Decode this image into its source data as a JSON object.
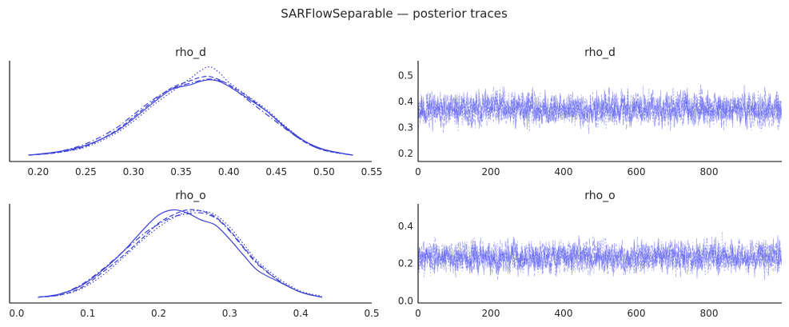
{
  "title": "SARFlowSeparable — posterior traces",
  "colors": {
    "line": "#3a3fd8",
    "trace": "#5b5cf0",
    "axis": "#000000",
    "text": "#262626"
  },
  "chart_data": [
    {
      "type": "line",
      "kind": "density",
      "title": "rho_d",
      "xlim": [
        0.17,
        0.55
      ],
      "xticks": [
        "0.20",
        "0.25",
        "0.30",
        "0.35",
        "0.40",
        "0.45",
        "0.50",
        "0.55"
      ],
      "yticks_visible": false,
      "chains": [
        {
          "style": "solid",
          "x": [
            0.19,
            0.22,
            0.25,
            0.28,
            0.3,
            0.32,
            0.34,
            0.36,
            0.37,
            0.38,
            0.39,
            0.4,
            0.42,
            0.44,
            0.46,
            0.48,
            0.5,
            0.53
          ],
          "y": [
            0.2,
            0.6,
            1.4,
            3.0,
            4.7,
            6.6,
            8.3,
            8.9,
            9.3,
            9.5,
            9.3,
            8.7,
            7.2,
            5.6,
            3.6,
            1.9,
            0.9,
            0.2
          ]
        },
        {
          "style": "dashed",
          "x": [
            0.19,
            0.22,
            0.25,
            0.28,
            0.3,
            0.32,
            0.34,
            0.36,
            0.37,
            0.38,
            0.39,
            0.4,
            0.42,
            0.44,
            0.46,
            0.48,
            0.5,
            0.53
          ],
          "y": [
            0.2,
            0.5,
            1.3,
            3.1,
            4.9,
            6.8,
            8.5,
            9.4,
            9.8,
            9.9,
            9.5,
            8.9,
            7.4,
            5.6,
            3.5,
            1.8,
            0.8,
            0.2
          ]
        },
        {
          "style": "dashdot",
          "x": [
            0.19,
            0.22,
            0.25,
            0.28,
            0.3,
            0.32,
            0.34,
            0.36,
            0.37,
            0.38,
            0.39,
            0.4,
            0.42,
            0.44,
            0.46,
            0.48,
            0.5,
            0.53
          ],
          "y": [
            0.2,
            0.6,
            1.6,
            3.4,
            5.2,
            7.0,
            8.4,
            9.1,
            9.4,
            9.6,
            9.4,
            8.9,
            7.0,
            5.2,
            3.4,
            1.8,
            0.8,
            0.2
          ]
        },
        {
          "style": "dotted",
          "x": [
            0.19,
            0.22,
            0.25,
            0.28,
            0.3,
            0.32,
            0.34,
            0.36,
            0.37,
            0.38,
            0.39,
            0.4,
            0.42,
            0.44,
            0.46,
            0.48,
            0.5,
            0.53
          ],
          "y": [
            0.2,
            0.5,
            1.2,
            2.8,
            4.4,
            6.3,
            8.0,
            9.7,
            10.6,
            11.1,
            10.4,
            9.2,
            7.5,
            5.8,
            3.7,
            1.9,
            0.8,
            0.2
          ]
        }
      ]
    },
    {
      "type": "line",
      "kind": "trace",
      "title": "rho_d",
      "xlim": [
        0,
        1000
      ],
      "ylim": [
        0.17,
        0.55
      ],
      "xticks": [
        0,
        200,
        400,
        600,
        800
      ],
      "yticks": [
        0.2,
        0.3,
        0.4,
        0.5
      ],
      "ytick_labels": [
        "0.2",
        "0.3",
        "0.4",
        "0.5"
      ],
      "chains": [
        {
          "style": "solid",
          "center": 0.37,
          "spread": 0.045,
          "seed": 11
        },
        {
          "style": "dashed",
          "center": 0.37,
          "spread": 0.045,
          "seed": 23
        },
        {
          "style": "dashdot",
          "center": 0.37,
          "spread": 0.045,
          "seed": 37
        },
        {
          "style": "dotted",
          "center": 0.37,
          "spread": 0.045,
          "seed": 51
        }
      ]
    },
    {
      "type": "line",
      "kind": "density",
      "title": "rho_o",
      "xlim": [
        -0.01,
        0.5
      ],
      "xticks": [
        "0.0",
        "0.1",
        "0.2",
        "0.3",
        "0.4",
        "0.5"
      ],
      "yticks_visible": false,
      "chains": [
        {
          "style": "solid",
          "x": [
            0.03,
            0.06,
            0.09,
            0.12,
            0.15,
            0.18,
            0.2,
            0.22,
            0.24,
            0.26,
            0.28,
            0.3,
            0.32,
            0.34,
            0.37,
            0.4,
            0.43
          ],
          "y": [
            0.1,
            0.4,
            1.2,
            2.7,
            4.6,
            6.9,
            8.2,
            8.7,
            8.4,
            7.7,
            7.2,
            5.8,
            4.2,
            2.7,
            1.6,
            0.6,
            0.1
          ]
        },
        {
          "style": "dashed",
          "x": [
            0.03,
            0.06,
            0.09,
            0.12,
            0.15,
            0.18,
            0.2,
            0.22,
            0.24,
            0.26,
            0.28,
            0.3,
            0.32,
            0.34,
            0.37,
            0.4,
            0.43
          ],
          "y": [
            0.1,
            0.3,
            1.0,
            2.5,
            4.2,
            6.1,
            7.4,
            8.2,
            8.7,
            8.6,
            8.0,
            6.7,
            5.0,
            3.4,
            1.7,
            0.6,
            0.1
          ]
        },
        {
          "style": "dashdot",
          "x": [
            0.03,
            0.06,
            0.09,
            0.12,
            0.15,
            0.18,
            0.2,
            0.22,
            0.24,
            0.26,
            0.28,
            0.3,
            0.32,
            0.34,
            0.37,
            0.4,
            0.43
          ],
          "y": [
            0.1,
            0.4,
            1.3,
            2.8,
            4.6,
            6.4,
            7.3,
            8.0,
            8.3,
            8.4,
            7.9,
            6.6,
            4.9,
            3.3,
            1.7,
            0.6,
            0.1
          ]
        },
        {
          "style": "dotted",
          "x": [
            0.03,
            0.06,
            0.09,
            0.12,
            0.15,
            0.18,
            0.2,
            0.22,
            0.24,
            0.26,
            0.28,
            0.3,
            0.32,
            0.34,
            0.37,
            0.4,
            0.43
          ],
          "y": [
            0.1,
            0.3,
            0.9,
            2.2,
            4.0,
            5.9,
            7.0,
            7.9,
            8.5,
            8.6,
            8.2,
            7.0,
            5.3,
            3.6,
            1.9,
            0.7,
            0.2
          ]
        }
      ]
    },
    {
      "type": "line",
      "kind": "trace",
      "title": "rho_o",
      "xlim": [
        0,
        1000
      ],
      "ylim": [
        -0.01,
        0.51
      ],
      "xticks": [
        0,
        200,
        400,
        600,
        800
      ],
      "yticks": [
        0.0,
        0.2,
        0.4
      ],
      "ytick_labels": [
        "0.0",
        "0.2",
        "0.4"
      ],
      "chains": [
        {
          "style": "solid",
          "center": 0.235,
          "spread": 0.06,
          "seed": 7
        },
        {
          "style": "dashed",
          "center": 0.235,
          "spread": 0.06,
          "seed": 19
        },
        {
          "style": "dashdot",
          "center": 0.235,
          "spread": 0.06,
          "seed": 29
        },
        {
          "style": "dotted",
          "center": 0.235,
          "spread": 0.06,
          "seed": 43
        }
      ]
    }
  ]
}
